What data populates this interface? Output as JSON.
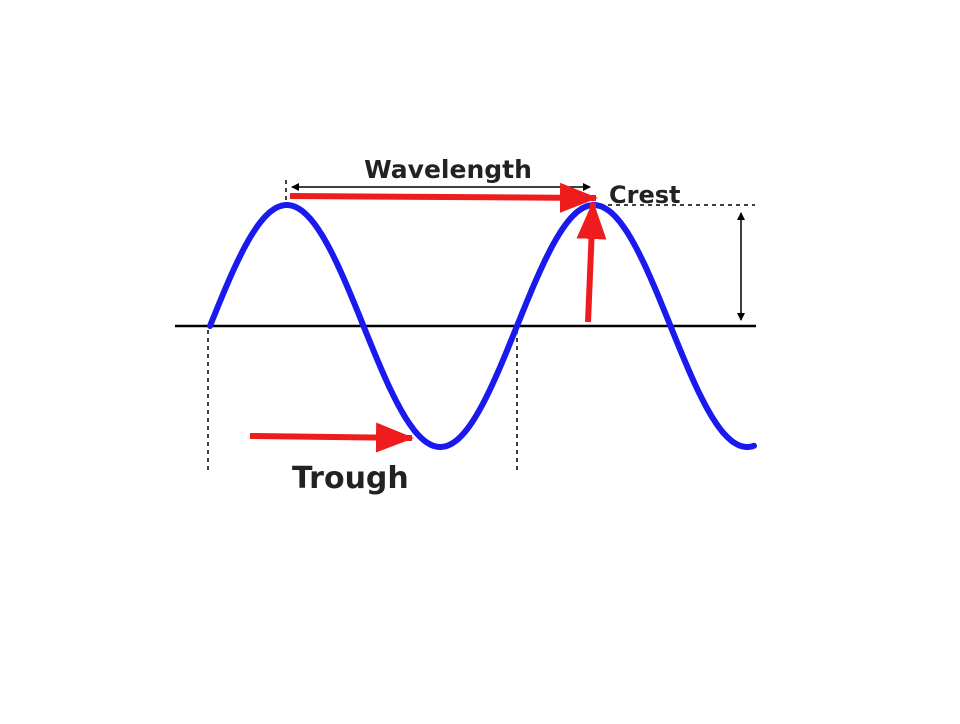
{
  "labels": {
    "wavelength": "Wavelength",
    "crest": "Crest",
    "trough": "Trough"
  }
}
